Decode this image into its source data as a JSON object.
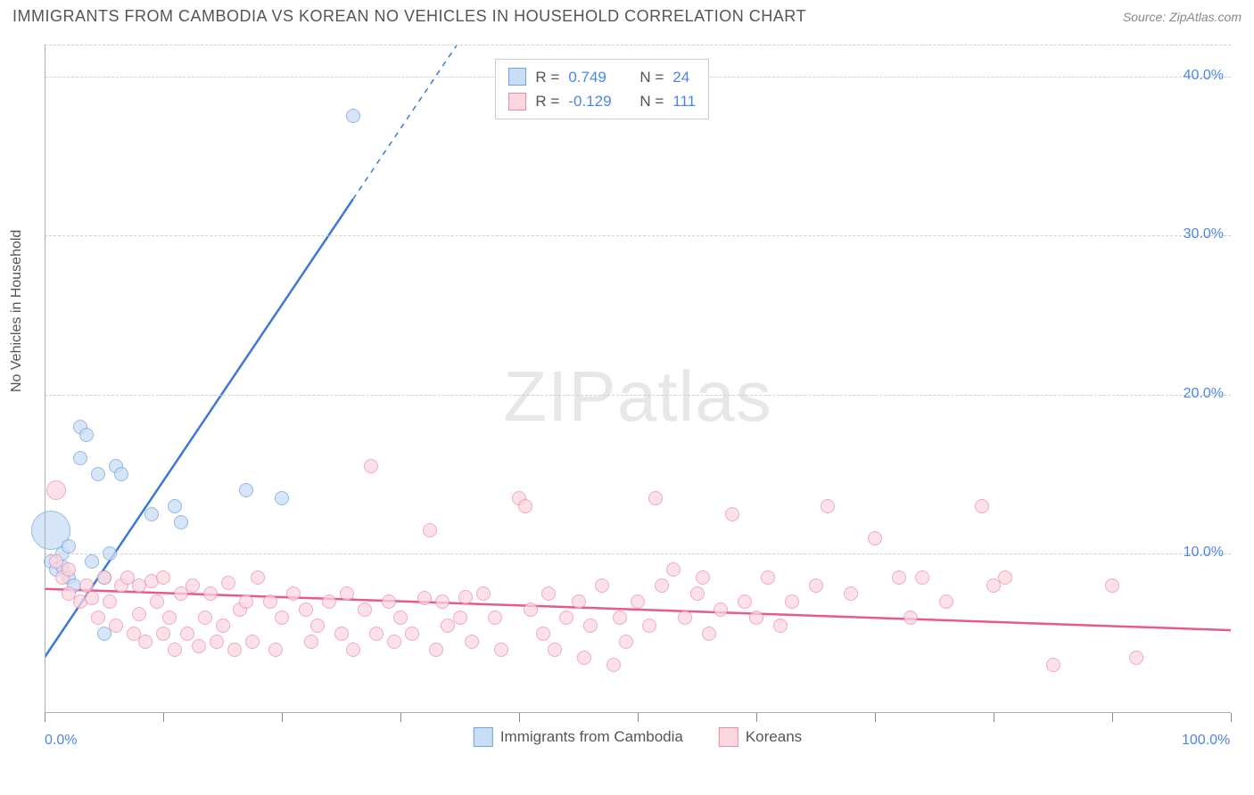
{
  "header": {
    "title": "IMMIGRANTS FROM CAMBODIA VS KOREAN NO VEHICLES IN HOUSEHOLD CORRELATION CHART",
    "source": "Source: ZipAtlas.com"
  },
  "watermark": {
    "zip": "ZIP",
    "atlas": "atlas"
  },
  "chart": {
    "type": "scatter",
    "ylabel": "No Vehicles in Household",
    "xlim": [
      0,
      100
    ],
    "ylim": [
      0,
      42
    ],
    "x_ticks": [
      0,
      10,
      20,
      30,
      40,
      50,
      60,
      70,
      80,
      90,
      100
    ],
    "x_tick_labels": {
      "0": "0.0%",
      "100": "100.0%"
    },
    "y_ticks": [
      10,
      20,
      30,
      40
    ],
    "y_tick_labels": {
      "10": "10.0%",
      "20": "20.0%",
      "30": "30.0%",
      "40": "40.0%"
    },
    "grid_color": "#d0d0d0",
    "axis_color": "#b0b0b0",
    "background_color": "#ffffff",
    "label_color": "#555555",
    "tick_label_color": "#4a86e8",
    "label_fontsize": 16,
    "tick_fontsize": 16,
    "series": [
      {
        "name": "Immigrants from Cambodia",
        "legend_label": "Immigrants from Cambodia",
        "marker_fill": "#c9ddf5",
        "marker_stroke": "#6fa3e0",
        "marker_opacity": 0.75,
        "line_color": "#3b78d8",
        "line_width": 2.5,
        "line_dash_after_x": 26,
        "R": "0.749",
        "N": "24",
        "trend": {
          "x1": 0,
          "y1": 3.5,
          "x2": 42,
          "y2": 50
        },
        "points": [
          {
            "x": 0.5,
            "y": 11.5,
            "r": 22
          },
          {
            "x": 0.5,
            "y": 9.5,
            "r": 8
          },
          {
            "x": 1.0,
            "y": 9.0,
            "r": 8
          },
          {
            "x": 1.5,
            "y": 10.0,
            "r": 8
          },
          {
            "x": 1.5,
            "y": 9.2,
            "r": 8
          },
          {
            "x": 2.0,
            "y": 8.5,
            "r": 8
          },
          {
            "x": 2.0,
            "y": 10.5,
            "r": 8
          },
          {
            "x": 3.0,
            "y": 18.0,
            "r": 8
          },
          {
            "x": 3.5,
            "y": 17.5,
            "r": 8
          },
          {
            "x": 3.0,
            "y": 16.0,
            "r": 8
          },
          {
            "x": 4.0,
            "y": 9.5,
            "r": 8
          },
          {
            "x": 4.5,
            "y": 15.0,
            "r": 8
          },
          {
            "x": 5.0,
            "y": 8.5,
            "r": 8
          },
          {
            "x": 5.0,
            "y": 5.0,
            "r": 8
          },
          {
            "x": 5.5,
            "y": 10.0,
            "r": 8
          },
          {
            "x": 6.0,
            "y": 15.5,
            "r": 8
          },
          {
            "x": 6.5,
            "y": 15.0,
            "r": 8
          },
          {
            "x": 9.0,
            "y": 12.5,
            "r": 8
          },
          {
            "x": 11.0,
            "y": 13.0,
            "r": 8
          },
          {
            "x": 11.5,
            "y": 12.0,
            "r": 8
          },
          {
            "x": 17.0,
            "y": 14.0,
            "r": 8
          },
          {
            "x": 20.0,
            "y": 13.5,
            "r": 8
          },
          {
            "x": 26.0,
            "y": 37.5,
            "r": 8
          },
          {
            "x": 2.5,
            "y": 8.0,
            "r": 8
          }
        ]
      },
      {
        "name": "Koreans",
        "legend_label": "Koreans",
        "marker_fill": "#fbd7e0",
        "marker_stroke": "#ec8aa4",
        "marker_opacity": 0.72,
        "line_color": "#e75a8d",
        "line_width": 2.5,
        "R": "-0.129",
        "N": "111",
        "trend": {
          "x1": 0,
          "y1": 7.8,
          "x2": 100,
          "y2": 5.2
        },
        "points": [
          {
            "x": 1,
            "y": 14.0,
            "r": 11
          },
          {
            "x": 1,
            "y": 9.5,
            "r": 8
          },
          {
            "x": 1.5,
            "y": 8.5,
            "r": 8
          },
          {
            "x": 2,
            "y": 9.0,
            "r": 8
          },
          {
            "x": 2,
            "y": 7.5,
            "r": 8
          },
          {
            "x": 3,
            "y": 7.0,
            "r": 8
          },
          {
            "x": 3.5,
            "y": 8.0,
            "r": 8
          },
          {
            "x": 4,
            "y": 7.2,
            "r": 8
          },
          {
            "x": 4.5,
            "y": 6.0,
            "r": 8
          },
          {
            "x": 5,
            "y": 8.5,
            "r": 8
          },
          {
            "x": 5.5,
            "y": 7.0,
            "r": 8
          },
          {
            "x": 6,
            "y": 5.5,
            "r": 8
          },
          {
            "x": 6.5,
            "y": 8.0,
            "r": 8
          },
          {
            "x": 7,
            "y": 8.5,
            "r": 8
          },
          {
            "x": 7.5,
            "y": 5.0,
            "r": 8
          },
          {
            "x": 8,
            "y": 8.0,
            "r": 8
          },
          {
            "x": 8,
            "y": 6.2,
            "r": 8
          },
          {
            "x": 8.5,
            "y": 4.5,
            "r": 8
          },
          {
            "x": 9,
            "y": 8.3,
            "r": 8
          },
          {
            "x": 9.5,
            "y": 7.0,
            "r": 8
          },
          {
            "x": 10,
            "y": 5.0,
            "r": 8
          },
          {
            "x": 10,
            "y": 8.5,
            "r": 8
          },
          {
            "x": 10.5,
            "y": 6.0,
            "r": 8
          },
          {
            "x": 11,
            "y": 4.0,
            "r": 8
          },
          {
            "x": 11.5,
            "y": 7.5,
            "r": 8
          },
          {
            "x": 12,
            "y": 5.0,
            "r": 8
          },
          {
            "x": 12.5,
            "y": 8.0,
            "r": 8
          },
          {
            "x": 13,
            "y": 4.2,
            "r": 8
          },
          {
            "x": 13.5,
            "y": 6.0,
            "r": 8
          },
          {
            "x": 14,
            "y": 7.5,
            "r": 8
          },
          {
            "x": 14.5,
            "y": 4.5,
            "r": 8
          },
          {
            "x": 15,
            "y": 5.5,
            "r": 8
          },
          {
            "x": 15.5,
            "y": 8.2,
            "r": 8
          },
          {
            "x": 16,
            "y": 4.0,
            "r": 8
          },
          {
            "x": 16.5,
            "y": 6.5,
            "r": 8
          },
          {
            "x": 17,
            "y": 7.0,
            "r": 8
          },
          {
            "x": 17.5,
            "y": 4.5,
            "r": 8
          },
          {
            "x": 18,
            "y": 8.5,
            "r": 8
          },
          {
            "x": 19,
            "y": 7.0,
            "r": 8
          },
          {
            "x": 19.5,
            "y": 4.0,
            "r": 8
          },
          {
            "x": 20,
            "y": 6.0,
            "r": 8
          },
          {
            "x": 21,
            "y": 7.5,
            "r": 8
          },
          {
            "x": 22,
            "y": 6.5,
            "r": 8
          },
          {
            "x": 22.5,
            "y": 4.5,
            "r": 8
          },
          {
            "x": 23,
            "y": 5.5,
            "r": 8
          },
          {
            "x": 24,
            "y": 7.0,
            "r": 8
          },
          {
            "x": 25,
            "y": 5.0,
            "r": 8
          },
          {
            "x": 25.5,
            "y": 7.5,
            "r": 8
          },
          {
            "x": 26,
            "y": 4.0,
            "r": 8
          },
          {
            "x": 27,
            "y": 6.5,
            "r": 8
          },
          {
            "x": 27.5,
            "y": 15.5,
            "r": 8
          },
          {
            "x": 28,
            "y": 5.0,
            "r": 8
          },
          {
            "x": 29,
            "y": 7.0,
            "r": 8
          },
          {
            "x": 29.5,
            "y": 4.5,
            "r": 8
          },
          {
            "x": 30,
            "y": 6.0,
            "r": 8
          },
          {
            "x": 31,
            "y": 5.0,
            "r": 8
          },
          {
            "x": 32,
            "y": 7.2,
            "r": 8
          },
          {
            "x": 32.5,
            "y": 11.5,
            "r": 8
          },
          {
            "x": 33,
            "y": 4.0,
            "r": 8
          },
          {
            "x": 33.5,
            "y": 7.0,
            "r": 8
          },
          {
            "x": 34,
            "y": 5.5,
            "r": 8
          },
          {
            "x": 35,
            "y": 6.0,
            "r": 8
          },
          {
            "x": 35.5,
            "y": 7.3,
            "r": 8
          },
          {
            "x": 36,
            "y": 4.5,
            "r": 8
          },
          {
            "x": 37,
            "y": 7.5,
            "r": 8
          },
          {
            "x": 38,
            "y": 6.0,
            "r": 8
          },
          {
            "x": 38.5,
            "y": 4.0,
            "r": 8
          },
          {
            "x": 40,
            "y": 13.5,
            "r": 8
          },
          {
            "x": 40.5,
            "y": 13.0,
            "r": 8
          },
          {
            "x": 41,
            "y": 6.5,
            "r": 8
          },
          {
            "x": 42,
            "y": 5.0,
            "r": 8
          },
          {
            "x": 42.5,
            "y": 7.5,
            "r": 8
          },
          {
            "x": 43,
            "y": 4.0,
            "r": 8
          },
          {
            "x": 44,
            "y": 6.0,
            "r": 8
          },
          {
            "x": 45,
            "y": 7.0,
            "r": 8
          },
          {
            "x": 45.5,
            "y": 3.5,
            "r": 8
          },
          {
            "x": 46,
            "y": 5.5,
            "r": 8
          },
          {
            "x": 47,
            "y": 8.0,
            "r": 8
          },
          {
            "x": 48,
            "y": 3.0,
            "r": 8
          },
          {
            "x": 48.5,
            "y": 6.0,
            "r": 8
          },
          {
            "x": 49,
            "y": 4.5,
            "r": 8
          },
          {
            "x": 50,
            "y": 7.0,
            "r": 8
          },
          {
            "x": 51,
            "y": 5.5,
            "r": 8
          },
          {
            "x": 51.5,
            "y": 13.5,
            "r": 8
          },
          {
            "x": 52,
            "y": 8.0,
            "r": 8
          },
          {
            "x": 53,
            "y": 9.0,
            "r": 8
          },
          {
            "x": 54,
            "y": 6.0,
            "r": 8
          },
          {
            "x": 55,
            "y": 7.5,
            "r": 8
          },
          {
            "x": 55.5,
            "y": 8.5,
            "r": 8
          },
          {
            "x": 56,
            "y": 5.0,
            "r": 8
          },
          {
            "x": 57,
            "y": 6.5,
            "r": 8
          },
          {
            "x": 58,
            "y": 12.5,
            "r": 8
          },
          {
            "x": 59,
            "y": 7.0,
            "r": 8
          },
          {
            "x": 60,
            "y": 6.0,
            "r": 8
          },
          {
            "x": 61,
            "y": 8.5,
            "r": 8
          },
          {
            "x": 62,
            "y": 5.5,
            "r": 8
          },
          {
            "x": 63,
            "y": 7.0,
            "r": 8
          },
          {
            "x": 65,
            "y": 8.0,
            "r": 8
          },
          {
            "x": 66,
            "y": 13.0,
            "r": 8
          },
          {
            "x": 68,
            "y": 7.5,
            "r": 8
          },
          {
            "x": 70,
            "y": 11.0,
            "r": 8
          },
          {
            "x": 72,
            "y": 8.5,
            "r": 8
          },
          {
            "x": 73,
            "y": 6.0,
            "r": 8
          },
          {
            "x": 74,
            "y": 8.5,
            "r": 8
          },
          {
            "x": 76,
            "y": 7.0,
            "r": 8
          },
          {
            "x": 79,
            "y": 13.0,
            "r": 8
          },
          {
            "x": 80,
            "y": 8.0,
            "r": 8
          },
          {
            "x": 81,
            "y": 8.5,
            "r": 8
          },
          {
            "x": 85,
            "y": 3.0,
            "r": 8
          },
          {
            "x": 90,
            "y": 8.0,
            "r": 8
          },
          {
            "x": 92,
            "y": 3.5,
            "r": 8
          }
        ]
      }
    ],
    "stats_box": {
      "left_pct": 38,
      "top_pct": 2
    }
  },
  "legend": {
    "items": [
      {
        "label": "Immigrants from Cambodia",
        "fill": "#c9ddf5",
        "stroke": "#6fa3e0"
      },
      {
        "label": "Koreans",
        "fill": "#fbd7e0",
        "stroke": "#ec8aa4"
      }
    ]
  },
  "stats_labels": {
    "R_label": "R =",
    "N_label": "N ="
  }
}
